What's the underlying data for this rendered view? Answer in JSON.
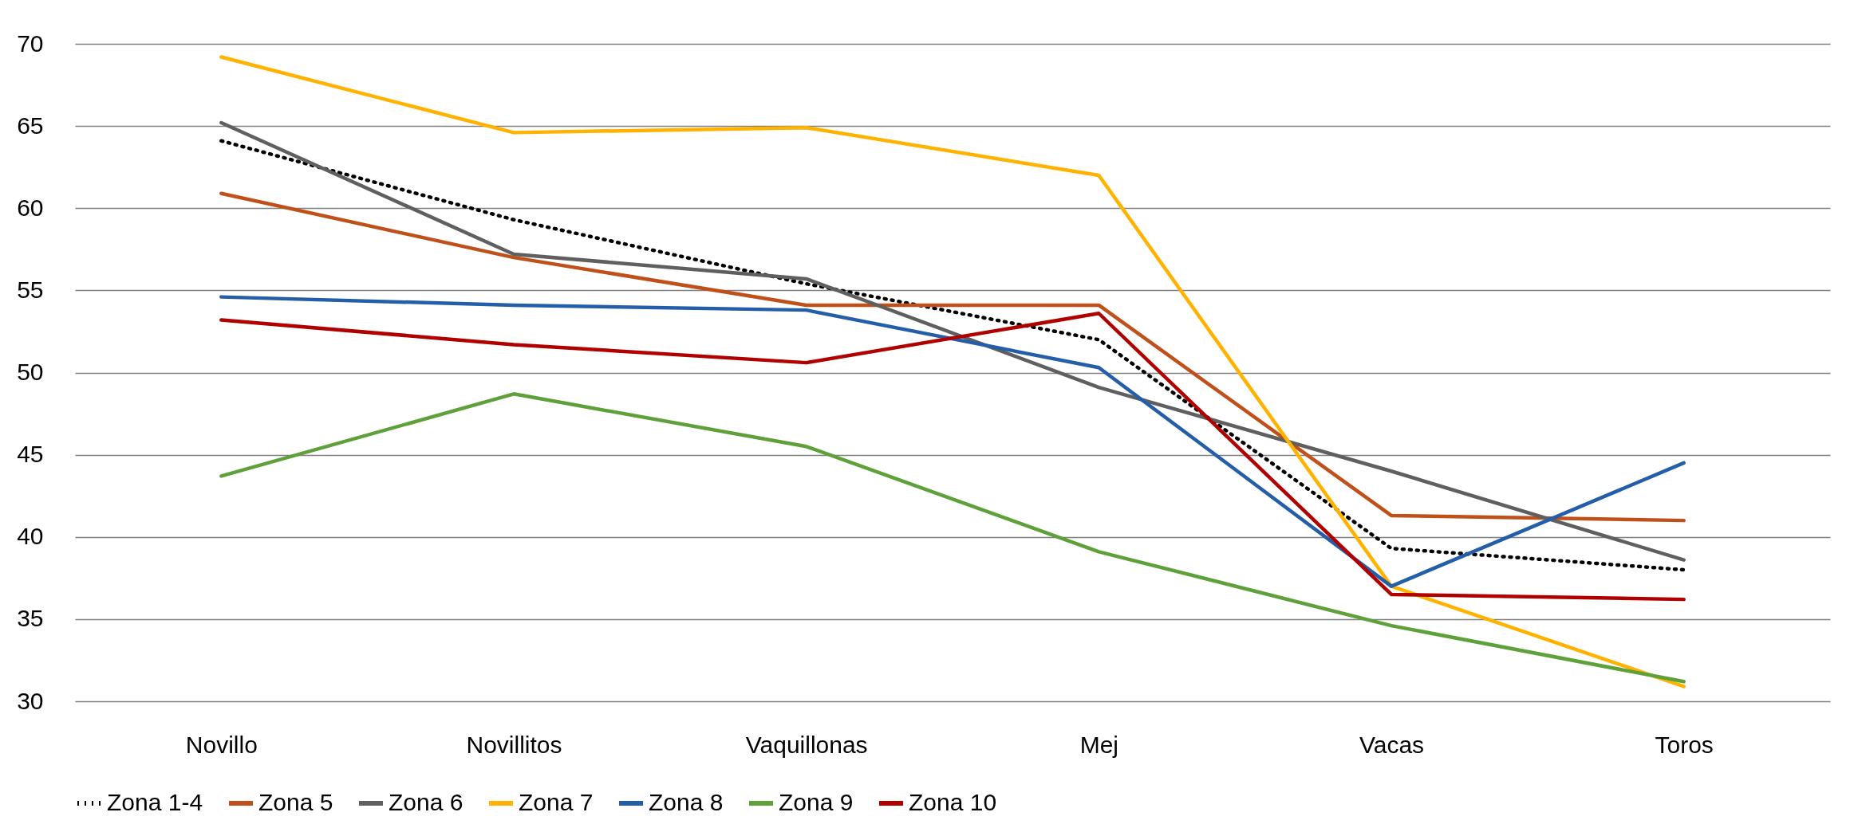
{
  "chart_data": {
    "type": "line",
    "categories": [
      "Novillo",
      "Novillitos",
      "Vaquillonas",
      "Mej",
      "Vacas",
      "Toros"
    ],
    "series": [
      {
        "name": "Zona 1-4",
        "color": "#000000",
        "line_style": "dotted",
        "values": [
          64.1,
          59.3,
          55.4,
          52.0,
          39.3,
          38.0
        ]
      },
      {
        "name": "Zona 5",
        "color": "#c0501a",
        "values": [
          60.9,
          57.0,
          54.1,
          54.1,
          41.3,
          41.0
        ]
      },
      {
        "name": "Zona 6",
        "color": "#5f5f5f",
        "values": [
          65.2,
          57.2,
          55.7,
          49.1,
          44.0,
          38.6
        ]
      },
      {
        "name": "Zona 7",
        "color": "#ffb300",
        "values": [
          69.2,
          64.6,
          64.9,
          62.0,
          37.0,
          30.9
        ]
      },
      {
        "name": "Zona 8",
        "color": "#255ea8",
        "values": [
          54.6,
          54.1,
          53.8,
          50.3,
          37.0,
          44.5
        ]
      },
      {
        "name": "Zona 9",
        "color": "#5ea03a",
        "values": [
          43.7,
          48.7,
          45.5,
          39.1,
          34.6,
          31.2
        ]
      },
      {
        "name": "Zona 10",
        "color": "#b00000",
        "values": [
          53.2,
          51.7,
          50.6,
          53.6,
          36.5,
          36.2
        ]
      }
    ],
    "ylim": [
      30,
      70
    ],
    "yticks": [
      30,
      35,
      40,
      45,
      50,
      55,
      60,
      65,
      70
    ],
    "grid": "y",
    "legend": "bottom",
    "line_style": "solid"
  }
}
